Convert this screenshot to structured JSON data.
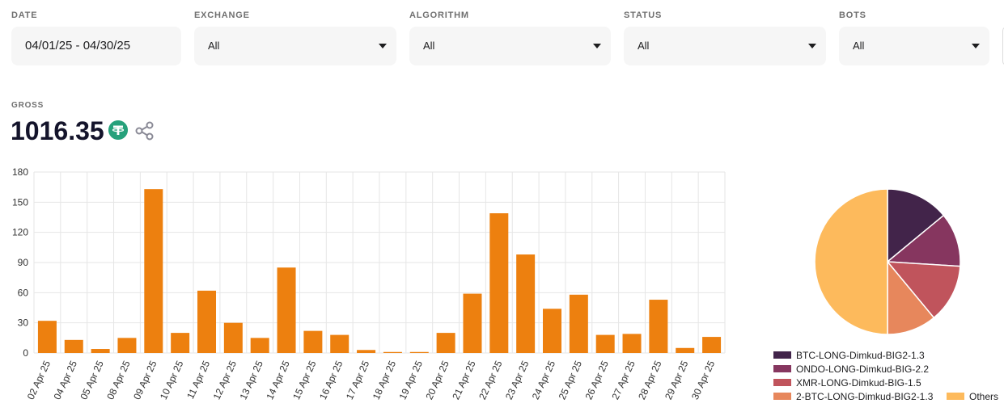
{
  "filters": {
    "date": {
      "label": "DATE",
      "value": "04/01/25 - 04/30/25"
    },
    "exchange": {
      "label": "EXCHANGE",
      "value": "All"
    },
    "algorithm": {
      "label": "ALGORITHM",
      "value": "All"
    },
    "status": {
      "label": "STATUS",
      "value": "All"
    },
    "bots": {
      "label": "BOTS",
      "value": "All"
    }
  },
  "gross": {
    "label": "GROSS",
    "value": "1016.35"
  },
  "icons": {
    "currency": "tether-icon",
    "share": "share-icon"
  },
  "colors": {
    "bar": "#ed800f",
    "currency": "#26a17b"
  },
  "chart_data": [
    {
      "type": "bar",
      "categories": [
        "02 Apr 25",
        "04 Apr 25",
        "05 Apr 25",
        "08 Apr 25",
        "09 Apr 25",
        "10 Apr 25",
        "11 Apr 25",
        "12 Apr 25",
        "13 Apr 25",
        "14 Apr 25",
        "15 Apr 25",
        "16 Apr 25",
        "17 Apr 25",
        "18 Apr 25",
        "19 Apr 25",
        "20 Apr 25",
        "21 Apr 25",
        "22 Apr 25",
        "23 Apr 25",
        "24 Apr 25",
        "25 Apr 25",
        "26 Apr 25",
        "27 Apr 25",
        "28 Apr 25",
        "29 Apr 25",
        "30 Apr 25"
      ],
      "values": [
        32,
        13,
        4,
        15,
        163,
        20,
        62,
        30,
        15,
        85,
        22,
        18,
        3,
        1,
        1,
        20,
        59,
        139,
        98,
        44,
        58,
        18,
        19,
        53,
        5,
        16
      ],
      "ylim": [
        0,
        180
      ],
      "yticks": [
        "0",
        "30",
        "60",
        "90",
        "120",
        "150",
        "180"
      ],
      "grid": true
    },
    {
      "type": "pie",
      "labels": [
        "BTC-LONG-Dimkud-BIG2-1.3",
        "ONDO-LONG-Dimkud-BIG-2.2",
        "XMR-LONG-Dimkud-BIG-1.5",
        "2-BTC-LONG-Dimkud-BIG2-1.3",
        "Others"
      ],
      "values": [
        14,
        12,
        13,
        11,
        50
      ],
      "colors": [
        "#42244a",
        "#86365f",
        "#c0545c",
        "#e7875c",
        "#fdba5c"
      ],
      "legend": "bottom"
    }
  ]
}
